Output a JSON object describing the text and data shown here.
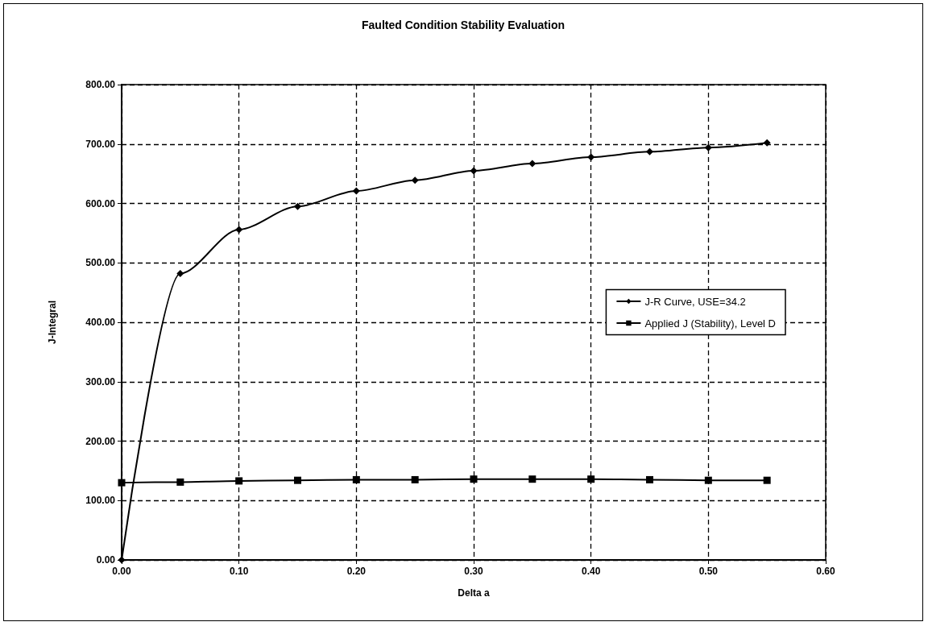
{
  "chart_data": {
    "type": "line",
    "title": "Faulted Condition Stability Evaluation",
    "xlabel": "Delta a",
    "ylabel": "J-Integral",
    "series": [
      {
        "name": "J-R Curve, USE=34.2",
        "color": "#000000",
        "marker": "diamond",
        "x": [
          0,
          0.05,
          0.1,
          0.15,
          0.2,
          0.25,
          0.3,
          0.35,
          0.4,
          0.45,
          0.5,
          0.55
        ],
        "values": [
          0,
          482,
          556,
          595,
          621,
          639,
          655,
          667,
          678,
          687,
          694,
          702
        ]
      },
      {
        "name": "Applied J (Stability), Level D",
        "color": "#000000",
        "marker": "square",
        "x": [
          0,
          0.05,
          0.1,
          0.15,
          0.2,
          0.25,
          0.3,
          0.35,
          0.4,
          0.45,
          0.5,
          0.55
        ],
        "values": [
          130,
          131,
          133,
          134,
          135,
          135,
          136,
          136,
          136,
          135,
          134,
          134
        ]
      }
    ],
    "xlim": [
      0,
      0.6
    ],
    "xticks": [
      {
        "value": 0,
        "label": "0.00"
      },
      {
        "value": 0.1,
        "label": "0.10"
      },
      {
        "value": 0.2,
        "label": "0.20"
      },
      {
        "value": 0.3,
        "label": "0.30"
      },
      {
        "value": 0.4,
        "label": "0.40"
      },
      {
        "value": 0.5,
        "label": "0.50"
      },
      {
        "value": 0.6,
        "label": "0.60"
      }
    ],
    "ylim": [
      0,
      800
    ],
    "yticks": [
      {
        "value": 0,
        "label": "0.00"
      },
      {
        "value": 100,
        "label": "100.00"
      },
      {
        "value": 200,
        "label": "200.00"
      },
      {
        "value": 300,
        "label": "300.00"
      },
      {
        "value": 400,
        "label": "400.00"
      },
      {
        "value": 500,
        "label": "500.00"
      },
      {
        "value": 600,
        "label": "600.00"
      },
      {
        "value": 700,
        "label": "700.00"
      },
      {
        "value": 800,
        "label": "800.00"
      }
    ],
    "grid": true,
    "legend": "right",
    "line_style": "solid"
  }
}
